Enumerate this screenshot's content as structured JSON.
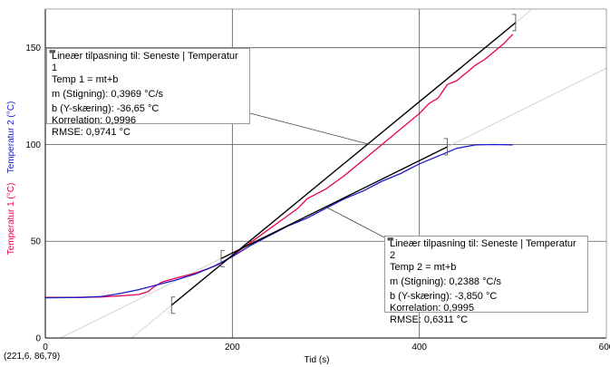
{
  "chart_data": {
    "type": "line",
    "xlabel": "Tid (s)",
    "ylabel_primary": "Temperatur 1 (°C)",
    "ylabel_secondary": "Temperatur 2 (°C)",
    "xlim": [
      0,
      600
    ],
    "ylim": [
      0,
      170
    ],
    "x_ticks": [
      "0",
      "200",
      "400",
      "600"
    ],
    "y_ticks": [
      "0",
      "50",
      "100",
      "150"
    ],
    "grid": true,
    "series": [
      {
        "name": "Temperatur 1",
        "color": "#e8004c",
        "points": [
          [
            0,
            21
          ],
          [
            30,
            21
          ],
          [
            60,
            21.2
          ],
          [
            80,
            21.8
          ],
          [
            100,
            22.5
          ],
          [
            110,
            24
          ],
          [
            115,
            26
          ],
          [
            125,
            29
          ],
          [
            140,
            31
          ],
          [
            160,
            33.5
          ],
          [
            175,
            36
          ],
          [
            185,
            38
          ],
          [
            195,
            41
          ],
          [
            210,
            46
          ],
          [
            230,
            53
          ],
          [
            250,
            60
          ],
          [
            270,
            67
          ],
          [
            280,
            72
          ],
          [
            300,
            77
          ],
          [
            320,
            84
          ],
          [
            340,
            92
          ],
          [
            360,
            100
          ],
          [
            380,
            108
          ],
          [
            400,
            116
          ],
          [
            410,
            121
          ],
          [
            420,
            124
          ],
          [
            430,
            131
          ],
          [
            440,
            133
          ],
          [
            450,
            137
          ],
          [
            460,
            141
          ],
          [
            470,
            144
          ],
          [
            480,
            148
          ],
          [
            490,
            152
          ],
          [
            500,
            157
          ]
        ]
      },
      {
        "name": "Temperatur 2",
        "color": "#1a1acc",
        "points": [
          [
            0,
            20.8
          ],
          [
            40,
            21
          ],
          [
            60,
            21.5
          ],
          [
            80,
            23
          ],
          [
            100,
            25
          ],
          [
            120,
            27.5
          ],
          [
            140,
            30
          ],
          [
            160,
            33
          ],
          [
            180,
            37
          ],
          [
            200,
            42
          ],
          [
            220,
            48
          ],
          [
            240,
            53
          ],
          [
            260,
            58
          ],
          [
            280,
            62
          ],
          [
            300,
            67
          ],
          [
            320,
            72
          ],
          [
            340,
            76
          ],
          [
            360,
            81
          ],
          [
            380,
            85
          ],
          [
            400,
            90
          ],
          [
            420,
            94
          ],
          [
            440,
            98
          ],
          [
            460,
            99.8
          ],
          [
            480,
            100
          ],
          [
            500,
            99.8
          ]
        ]
      }
    ],
    "fits": [
      {
        "series": "Temperatur 1",
        "m": 0.3969,
        "b": -36.65,
        "range": [
          135,
          503
        ],
        "color": "#000000",
        "lines": [
          "Lineær tilpasning til: Seneste | Temperatur 1",
          "Temp 1 = mt+b",
          "m (Stigning): 0,3969 °C/s",
          "b (Y-skæring): -36,65 °C",
          "Korrelation: 0,9996",
          "RMSE: 0,9741 °C"
        ]
      },
      {
        "series": "Temperatur 2",
        "m": 0.2388,
        "b": -3.85,
        "range": [
          188,
          430
        ],
        "color": "#000000",
        "lines": [
          "Lineær tilpasning til: Seneste | Temperatur 2",
          "Temp 2 = mt+b",
          "m (Stigning): 0,2388 °C/s",
          "b (Y-skæring): -3,850 °C",
          "Korrelation: 0,9995",
          "RMSE: 0,6311 °C"
        ]
      }
    ]
  },
  "cursor_readout": "(221,6, 86,79)"
}
